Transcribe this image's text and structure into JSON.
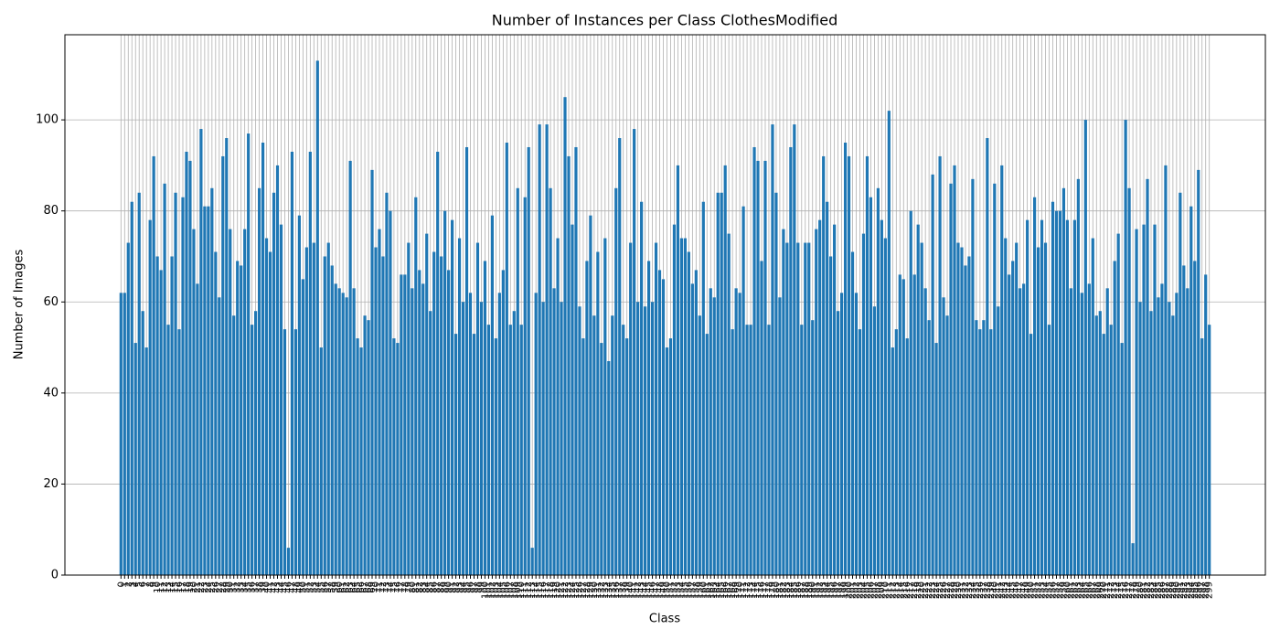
{
  "chart_data": {
    "type": "bar",
    "title": "Number of Instances per Class ClothesModified",
    "x_label": "Class",
    "y_label": "Number of Images",
    "color": "#1f77b4",
    "grid": true,
    "ylim": [
      0,
      118.7
    ],
    "yticks": [
      0,
      20,
      40,
      60,
      80,
      100
    ],
    "xlim": [
      -15.4,
      314.4
    ],
    "categories": [
      0,
      1,
      2,
      3,
      4,
      5,
      6,
      7,
      8,
      9,
      10,
      11,
      12,
      13,
      14,
      15,
      16,
      17,
      18,
      19,
      20,
      21,
      22,
      23,
      24,
      25,
      26,
      27,
      28,
      29,
      30,
      31,
      32,
      33,
      34,
      35,
      36,
      37,
      38,
      39,
      40,
      41,
      42,
      43,
      44,
      45,
      46,
      47,
      48,
      49,
      50,
      51,
      52,
      53,
      54,
      55,
      56,
      57,
      58,
      59,
      60,
      61,
      62,
      63,
      64,
      65,
      66,
      67,
      68,
      69,
      70,
      71,
      72,
      73,
      74,
      75,
      76,
      77,
      78,
      79,
      80,
      81,
      82,
      83,
      84,
      85,
      86,
      87,
      88,
      89,
      90,
      91,
      92,
      93,
      94,
      95,
      96,
      97,
      98,
      99,
      100,
      101,
      102,
      103,
      104,
      105,
      106,
      107,
      108,
      109,
      110,
      111,
      112,
      113,
      114,
      115,
      116,
      117,
      118,
      119,
      120,
      121,
      122,
      123,
      124,
      125,
      126,
      127,
      128,
      129,
      130,
      131,
      132,
      133,
      134,
      135,
      136,
      137,
      138,
      139,
      140,
      141,
      142,
      143,
      144,
      145,
      146,
      147,
      148,
      149,
      150,
      151,
      152,
      153,
      154,
      155,
      156,
      157,
      158,
      159,
      160,
      161,
      162,
      163,
      164,
      165,
      166,
      167,
      168,
      169,
      170,
      171,
      172,
      173,
      174,
      175,
      176,
      177,
      178,
      179,
      180,
      181,
      182,
      183,
      184,
      185,
      186,
      187,
      188,
      189,
      190,
      191,
      192,
      193,
      194,
      195,
      196,
      197,
      198,
      199,
      200,
      201,
      202,
      203,
      204,
      205,
      206,
      207,
      208,
      209,
      210,
      211,
      212,
      213,
      214,
      215,
      216,
      217,
      218,
      219,
      220,
      221,
      222,
      223,
      224,
      225,
      226,
      227,
      228,
      229,
      230,
      231,
      232,
      233,
      234,
      235,
      236,
      237,
      238,
      239,
      240,
      241,
      242,
      243,
      244,
      245,
      246,
      247,
      248,
      249,
      250,
      251,
      252,
      253,
      254,
      255,
      256,
      257,
      258,
      259,
      260,
      261,
      262,
      263,
      264,
      265,
      266,
      267,
      268,
      269,
      270,
      271,
      272,
      273,
      274,
      275,
      276,
      277,
      278,
      279,
      280,
      281,
      282,
      283,
      284,
      285,
      286,
      287,
      288,
      289,
      290,
      291,
      292,
      293,
      294,
      295,
      296,
      297,
      298,
      299
    ],
    "values": [
      62,
      62,
      73,
      82,
      51,
      84,
      58,
      50,
      78,
      92,
      70,
      67,
      86,
      55,
      70,
      84,
      54,
      83,
      93,
      91,
      76,
      64,
      98,
      81,
      81,
      85,
      71,
      61,
      92,
      96,
      76,
      57,
      69,
      68,
      76,
      97,
      55,
      58,
      85,
      95,
      74,
      71,
      84,
      90,
      77,
      54,
      6,
      93,
      54,
      79,
      65,
      72,
      93,
      73,
      113,
      50,
      70,
      73,
      68,
      64,
      63,
      62,
      61,
      91,
      63,
      52,
      50,
      57,
      56,
      89,
      72,
      76,
      70,
      84,
      80,
      52,
      51,
      66,
      66,
      73,
      63,
      83,
      67,
      64,
      75,
      58,
      71,
      93,
      70,
      80,
      67,
      78,
      53,
      74,
      60,
      94,
      62,
      53,
      73,
      60,
      69,
      55,
      79,
      52,
      62,
      67,
      95,
      55,
      58,
      85,
      55,
      83,
      94,
      6,
      62,
      99,
      60,
      99,
      85,
      63,
      74,
      60,
      105,
      92,
      77,
      94,
      59,
      52,
      69,
      79,
      57,
      71,
      51,
      74,
      47,
      57,
      85,
      96,
      55,
      52,
      73,
      98,
      60,
      82,
      59,
      69,
      60,
      73,
      67,
      65,
      50,
      52,
      77,
      90,
      74,
      74,
      71,
      64,
      67,
      57,
      82,
      53,
      63,
      61,
      84,
      84,
      90,
      75,
      54,
      63,
      62,
      81,
      55,
      55,
      94,
      91,
      69,
      91,
      55,
      99,
      84,
      61,
      76,
      73,
      94,
      99,
      73,
      55,
      73,
      73,
      56,
      76,
      78,
      92,
      82,
      70,
      77,
      58,
      62,
      95,
      92,
      71,
      62,
      54,
      75,
      92,
      83,
      59,
      85,
      78,
      74,
      102,
      50,
      54,
      66,
      65,
      52,
      80,
      66,
      77,
      73,
      63,
      56,
      88,
      51,
      92,
      61,
      57,
      86,
      90,
      73,
      72,
      68,
      70,
      87,
      56,
      54,
      56,
      96,
      54,
      86,
      59,
      90,
      74,
      66,
      69,
      73,
      63,
      64,
      78,
      53,
      83,
      72,
      78,
      73,
      55,
      82,
      80,
      80,
      85,
      78,
      63,
      78,
      87,
      62,
      100,
      64,
      74,
      57,
      58,
      53,
      63,
      55,
      69,
      75,
      51,
      100,
      85,
      7,
      76,
      60,
      77,
      87,
      58,
      77,
      61,
      64,
      90,
      60,
      57,
      62,
      84,
      68,
      63,
      81,
      69,
      89,
      52,
      66,
      55
    ]
  }
}
